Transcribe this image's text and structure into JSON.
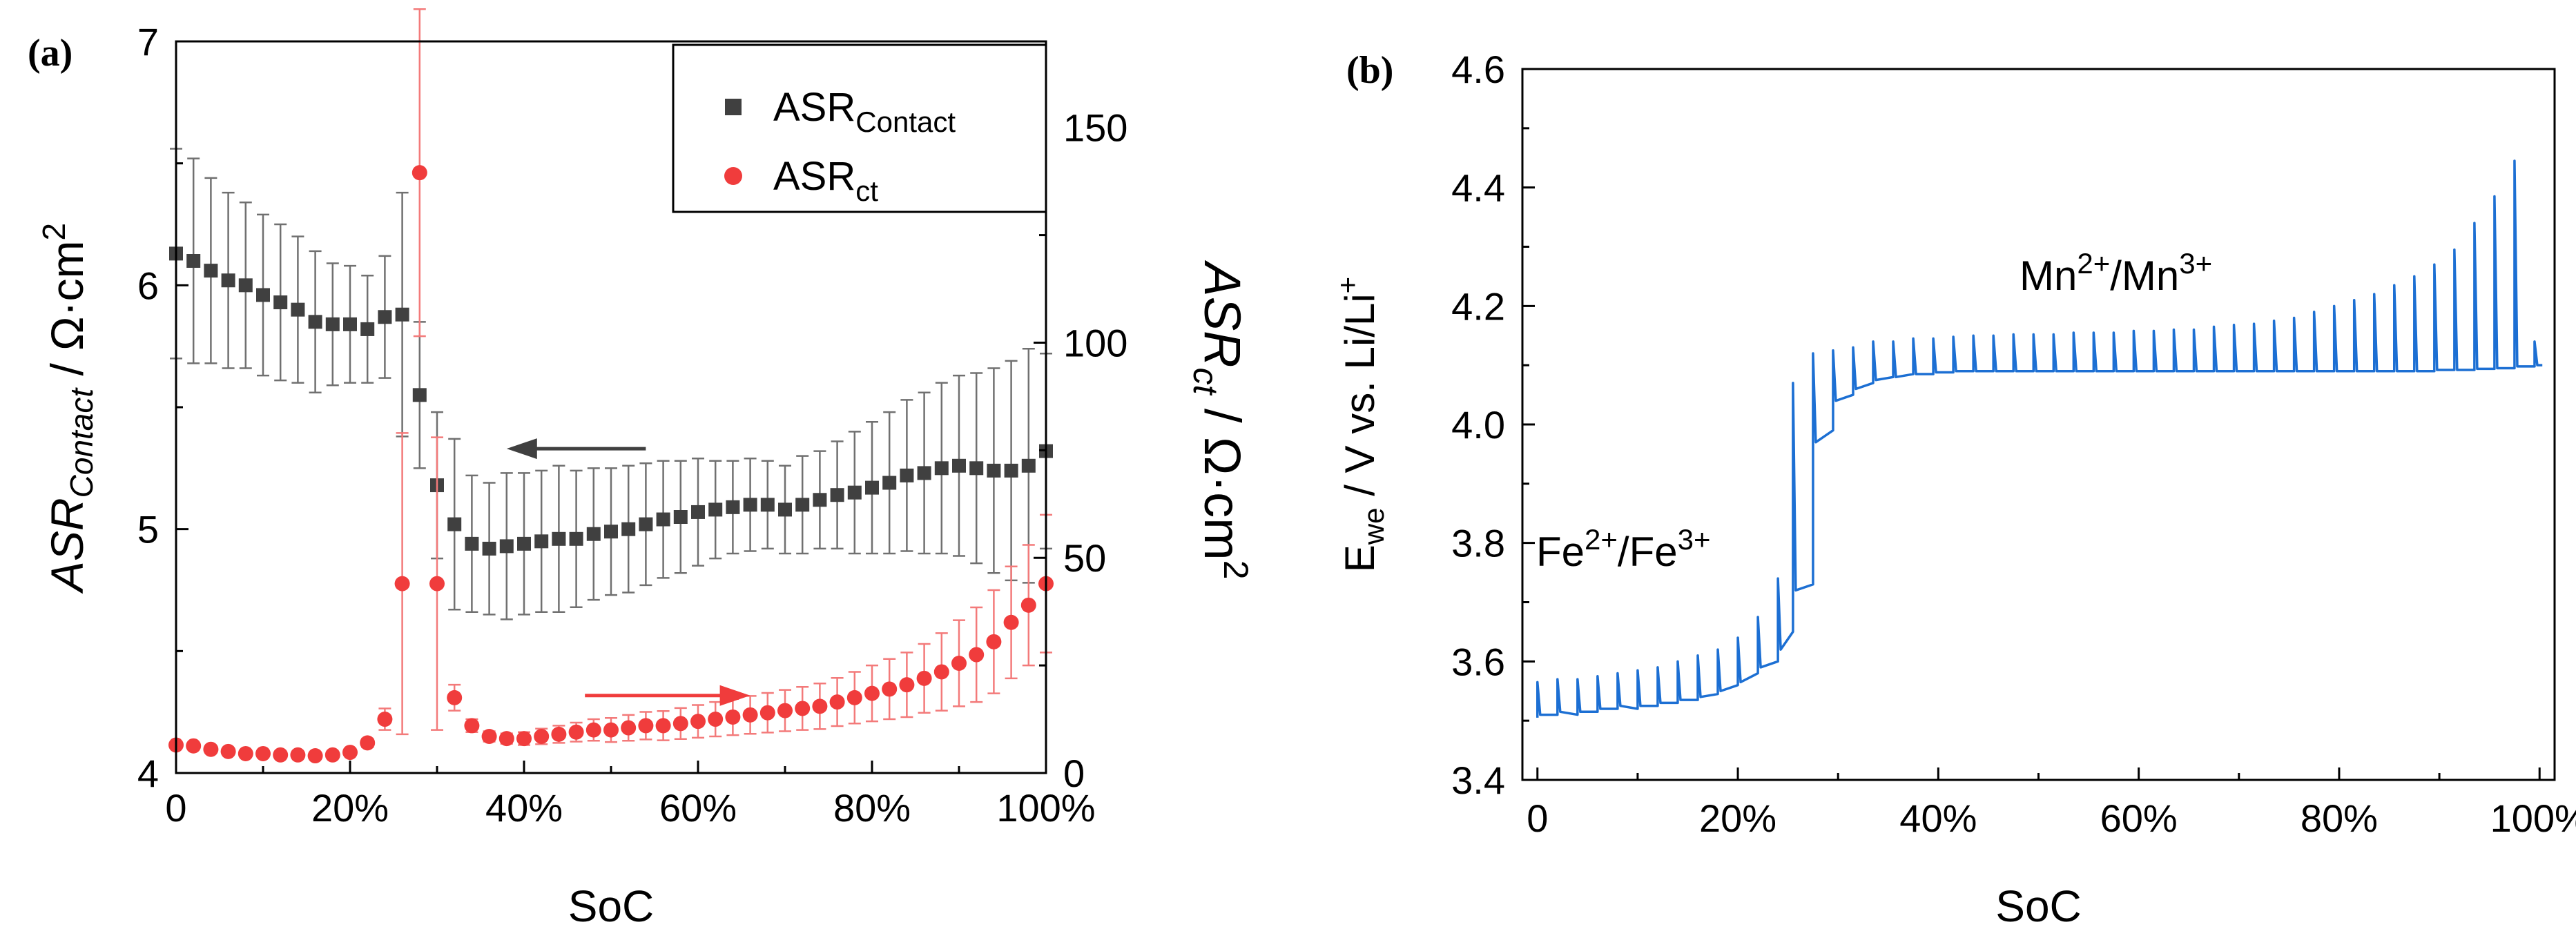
{
  "chart_data": [
    {
      "panel_label": "(a)",
      "type": "scatter",
      "xlabel": "SoC",
      "ylabel": {
        "base": "ASR",
        "sub": "Contact",
        "unit": " / Ω·cm",
        "sup": "2"
      },
      "y2label": {
        "base": "ASR",
        "sub": "ct",
        "unit": " / Ω·cm",
        "sup": "2"
      },
      "xlim": [
        0,
        100
      ],
      "ylim": [
        4,
        7
      ],
      "y2lim": [
        0,
        170
      ],
      "xticks": [
        "0",
        "20%",
        "40%",
        "60%",
        "80%",
        "100%"
      ],
      "yticks": [
        "4",
        "5",
        "6",
        "7"
      ],
      "y2ticks": [
        "0",
        "50",
        "100",
        "150"
      ],
      "legend_position": "top-right",
      "legend": [
        {
          "base": "ASR",
          "sub": "Contact",
          "marker": "square",
          "color": "#404040"
        },
        {
          "base": "ASR",
          "sub": "ct",
          "marker": "circle",
          "color": "#f03c3c"
        }
      ],
      "series": [
        {
          "name": "ASR_Contact",
          "axis": "left",
          "marker": "square",
          "color": "#404040",
          "errcolor": "#707070",
          "points": [
            [
              0,
              6.13,
              0.43
            ],
            [
              2,
              6.1,
              0.42
            ],
            [
              4,
              6.06,
              0.38
            ],
            [
              6,
              6.02,
              0.36
            ],
            [
              8,
              6.0,
              0.34
            ],
            [
              10,
              5.96,
              0.33
            ],
            [
              12,
              5.93,
              0.32
            ],
            [
              14,
              5.9,
              0.3
            ],
            [
              16,
              5.85,
              0.29
            ],
            [
              18,
              5.84,
              0.25
            ],
            [
              20,
              5.84,
              0.24
            ],
            [
              22,
              5.82,
              0.22
            ],
            [
              24,
              5.87,
              0.25
            ],
            [
              26,
              5.88,
              0.5
            ],
            [
              28,
              5.55,
              0.3
            ],
            [
              30,
              5.18,
              0.3
            ],
            [
              32,
              5.02,
              0.35
            ],
            [
              34,
              4.94,
              0.28
            ],
            [
              36,
              4.92,
              0.27
            ],
            [
              38,
              4.93,
              0.3
            ],
            [
              40,
              4.94,
              0.29
            ],
            [
              42,
              4.95,
              0.29
            ],
            [
              44,
              4.96,
              0.3
            ],
            [
              46,
              4.96,
              0.28
            ],
            [
              48,
              4.98,
              0.27
            ],
            [
              50,
              4.99,
              0.26
            ],
            [
              52,
              5.0,
              0.26
            ],
            [
              54,
              5.02,
              0.25
            ],
            [
              56,
              5.04,
              0.24
            ],
            [
              58,
              5.05,
              0.23
            ],
            [
              60,
              5.07,
              0.22
            ],
            [
              62,
              5.08,
              0.2
            ],
            [
              64,
              5.09,
              0.19
            ],
            [
              66,
              5.1,
              0.19
            ],
            [
              68,
              5.1,
              0.18
            ],
            [
              70,
              5.08,
              0.18
            ],
            [
              72,
              5.1,
              0.2
            ],
            [
              74,
              5.12,
              0.2
            ],
            [
              76,
              5.14,
              0.22
            ],
            [
              78,
              5.15,
              0.25
            ],
            [
              80,
              5.17,
              0.27
            ],
            [
              82,
              5.19,
              0.29
            ],
            [
              84,
              5.22,
              0.31
            ],
            [
              86,
              5.23,
              0.33
            ],
            [
              88,
              5.25,
              0.35
            ],
            [
              90,
              5.26,
              0.37
            ],
            [
              92,
              5.25,
              0.39
            ],
            [
              94,
              5.24,
              0.42
            ],
            [
              96,
              5.24,
              0.45
            ],
            [
              98,
              5.26,
              0.48
            ],
            [
              100,
              5.32,
              0.4
            ]
          ]
        },
        {
          "name": "ASR_ct",
          "axis": "right",
          "marker": "circle",
          "color": "#f03c3c",
          "errcolor": "#f37a7a",
          "points": [
            [
              0,
              6.5,
              0.5
            ],
            [
              2,
              6.3,
              0.5
            ],
            [
              4,
              5.5,
              0.5
            ],
            [
              6,
              5.0,
              0.5
            ],
            [
              8,
              4.5,
              0.5
            ],
            [
              10,
              4.5,
              0.5
            ],
            [
              12,
              4.2,
              0.5
            ],
            [
              14,
              4.2,
              0.5
            ],
            [
              16,
              4.0,
              0.5
            ],
            [
              18,
              4.2,
              0.5
            ],
            [
              20,
              4.8,
              0.5
            ],
            [
              22,
              7.0,
              1.0
            ],
            [
              24,
              12.5,
              2.5
            ],
            [
              26,
              44.0,
              35.0
            ],
            [
              28,
              139.5,
              38.0
            ],
            [
              30,
              44.0,
              34.0
            ],
            [
              32,
              17.5,
              3.0
            ],
            [
              34,
              11.0,
              1.5
            ],
            [
              36,
              8.5,
              1.2
            ],
            [
              38,
              8.0,
              1.2
            ],
            [
              40,
              8.0,
              1.5
            ],
            [
              42,
              8.5,
              1.8
            ],
            [
              44,
              9.0,
              2.0
            ],
            [
              46,
              9.5,
              2.2
            ],
            [
              48,
              10.0,
              2.5
            ],
            [
              50,
              10.0,
              2.8
            ],
            [
              52,
              10.5,
              3.0
            ],
            [
              54,
              11.0,
              3.2
            ],
            [
              56,
              11.0,
              3.4
            ],
            [
              58,
              11.5,
              3.6
            ],
            [
              60,
              12.0,
              3.8
            ],
            [
              62,
              12.5,
              4.0
            ],
            [
              64,
              13.0,
              4.2
            ],
            [
              66,
              13.5,
              4.4
            ],
            [
              68,
              14.0,
              4.6
            ],
            [
              70,
              14.5,
              4.8
            ],
            [
              72,
              15.0,
              5.0
            ],
            [
              74,
              15.5,
              5.3
            ],
            [
              76,
              16.5,
              5.6
            ],
            [
              78,
              17.5,
              6.0
            ],
            [
              80,
              18.5,
              6.5
            ],
            [
              82,
              19.5,
              7.0
            ],
            [
              84,
              20.5,
              7.5
            ],
            [
              86,
              22.0,
              8.0
            ],
            [
              88,
              23.5,
              9.0
            ],
            [
              90,
              25.5,
              10.0
            ],
            [
              92,
              27.5,
              11.0
            ],
            [
              94,
              30.5,
              12.0
            ],
            [
              96,
              35.0,
              13.0
            ],
            [
              98,
              39.0,
              14.0
            ],
            [
              100,
              44.0,
              16.0
            ]
          ]
        }
      ],
      "arrows": [
        {
          "direction": "left",
          "axis": "left",
          "from": [
            54,
            5.33
          ],
          "to": [
            38,
            5.33
          ],
          "color": "#404040"
        },
        {
          "direction": "right",
          "axis": "right",
          "from": [
            47,
            18
          ],
          "to": [
            66,
            18
          ],
          "color": "#f03c3c"
        }
      ]
    },
    {
      "panel_label": "(b)",
      "type": "line",
      "xlabel": "SoC",
      "ylabel": {
        "base": "E",
        "sub": "we",
        "rest": " / V vs. Li/Li",
        "sup": "+"
      },
      "xlim": [
        -1.5,
        101.5
      ],
      "ylim": [
        3.4,
        4.6
      ],
      "xticks": [
        "0",
        "20%",
        "40%",
        "60%",
        "80%",
        "100%"
      ],
      "yticks": [
        "3.4",
        "3.6",
        "3.8",
        "4.0",
        "4.2",
        "4.4",
        "4.6"
      ],
      "color": "#1c6fd3",
      "annotations": [
        {
          "parts": [
            [
              "Fe",
              ""
            ],
            [
              "2+",
              "sup"
            ],
            [
              "/Fe",
              ""
            ],
            [
              "3+",
              "sup"
            ]
          ]
        },
        {
          "parts": [
            [
              "Mn",
              ""
            ],
            [
              "2+",
              "sup"
            ],
            [
              "/Mn",
              ""
            ],
            [
              "3+",
              "sup"
            ]
          ]
        }
      ],
      "steps": [
        [
          0,
          3.505,
          3.565,
          3.51
        ],
        [
          2,
          3.51,
          3.57,
          3.515
        ],
        [
          4,
          3.51,
          3.57,
          3.515
        ],
        [
          6,
          3.515,
          3.575,
          3.52
        ],
        [
          8,
          3.52,
          3.58,
          3.525
        ],
        [
          10,
          3.52,
          3.585,
          3.525
        ],
        [
          12,
          3.525,
          3.59,
          3.53
        ],
        [
          14,
          3.53,
          3.6,
          3.535
        ],
        [
          16,
          3.535,
          3.61,
          3.54
        ],
        [
          18,
          3.545,
          3.62,
          3.55
        ],
        [
          20,
          3.56,
          3.64,
          3.565
        ],
        [
          22,
          3.58,
          3.675,
          3.59
        ],
        [
          24,
          3.6,
          3.74,
          3.62
        ],
        [
          25.5,
          3.65,
          4.07,
          3.72
        ],
        [
          27.5,
          3.73,
          4.12,
          3.97
        ],
        [
          29.5,
          3.99,
          4.125,
          4.04
        ],
        [
          31.5,
          4.05,
          4.13,
          4.06
        ],
        [
          33.5,
          4.07,
          4.14,
          4.075
        ],
        [
          35.5,
          4.08,
          4.14,
          4.08
        ],
        [
          37.5,
          4.085,
          4.145,
          4.085
        ],
        [
          39.5,
          4.085,
          4.145,
          4.088
        ],
        [
          41.5,
          4.088,
          4.148,
          4.09
        ],
        [
          43.5,
          4.09,
          4.15,
          4.09
        ],
        [
          45.5,
          4.09,
          4.15,
          4.09
        ],
        [
          47.5,
          4.09,
          4.152,
          4.09
        ],
        [
          49.5,
          4.09,
          4.152,
          4.09
        ],
        [
          51.5,
          4.09,
          4.152,
          4.09
        ],
        [
          53.5,
          4.09,
          4.155,
          4.09
        ],
        [
          55.5,
          4.09,
          4.155,
          4.09
        ],
        [
          57.5,
          4.09,
          4.155,
          4.09
        ],
        [
          59.5,
          4.09,
          4.158,
          4.09
        ],
        [
          61.5,
          4.09,
          4.158,
          4.09
        ],
        [
          63.5,
          4.09,
          4.16,
          4.09
        ],
        [
          65.5,
          4.09,
          4.16,
          4.09
        ],
        [
          67.5,
          4.09,
          4.165,
          4.09
        ],
        [
          69.5,
          4.09,
          4.168,
          4.09
        ],
        [
          71.5,
          4.09,
          4.17,
          4.09
        ],
        [
          73.5,
          4.09,
          4.175,
          4.09
        ],
        [
          75.5,
          4.09,
          4.18,
          4.09
        ],
        [
          77.5,
          4.09,
          4.19,
          4.09
        ],
        [
          79.5,
          4.09,
          4.2,
          4.09
        ],
        [
          81.5,
          4.09,
          4.21,
          4.09
        ],
        [
          83.5,
          4.09,
          4.22,
          4.09
        ],
        [
          85.5,
          4.09,
          4.235,
          4.09
        ],
        [
          87.5,
          4.09,
          4.25,
          4.09
        ],
        [
          89.5,
          4.09,
          4.27,
          4.092
        ],
        [
          91.5,
          4.092,
          4.295,
          4.092
        ],
        [
          93.5,
          4.092,
          4.34,
          4.094
        ],
        [
          95.5,
          4.094,
          4.385,
          4.095
        ],
        [
          97.5,
          4.095,
          4.445,
          4.098
        ],
        [
          99.5,
          4.098,
          4.14,
          4.1
        ],
        [
          100,
          4.1,
          4.1,
          4.1
        ]
      ]
    }
  ]
}
